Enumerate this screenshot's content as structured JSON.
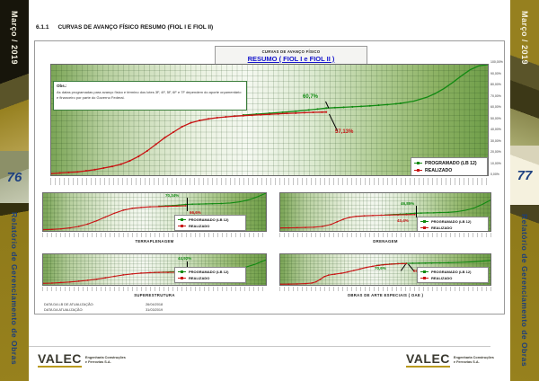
{
  "sidebar_left": {
    "month": "Março / 2019",
    "page_number": "76",
    "report_title": "Relatório de Gerenciamento de Obras"
  },
  "sidebar_right": {
    "month": "Março / 2019",
    "page_number": "77",
    "report_title": "Relatório de Gerenciamento de Obras"
  },
  "heading": {
    "number": "6.1.1",
    "title": "CURVAS DE AVANÇO FÍSICO RESUMO (FIOL I E FIOL II)"
  },
  "title_box": {
    "line1": "CURVAS DE AVANÇO FÍSICO",
    "line2": "RESUMO ( FIOL I e FIOL II )"
  },
  "note_box": {
    "label": "Obs.:",
    "text": "As datas programadas para avanço físico e término dos lotes 3F, 4F, 5F, 6F e 7F dependem do aporte orçamentário e financeiro por parte do Governo Federal."
  },
  "legend": {
    "programado": "PROGRAMADO (LB 12)",
    "realizado": "REALIZADO"
  },
  "main_chart": {
    "y_axis_labels": [
      "100,00%",
      "90,00%",
      "80,00%",
      "70,00%",
      "60,00%",
      "50,00%",
      "40,00%",
      "30,00%",
      "20,00%",
      "10,00%",
      "0,00%"
    ]
  },
  "footer_dates": {
    "rows": [
      {
        "label": "DATA DA LB DE ATUALIZAÇÃO:",
        "value": "26/04/2018"
      },
      {
        "label": "DATA DA ATUALIZAÇÃO:",
        "value": "31/03/2019"
      }
    ]
  },
  "logo": {
    "name": "VALEC",
    "tagline1": "Engenharia Construções",
    "tagline2": "e Ferrovias S.A."
  },
  "colors": {
    "programado": "#118a11",
    "realizado": "#c81414",
    "accent_blue": "#1414cc",
    "sidebar_gold": "#8f7a1a",
    "page_number_blue": "#1d4080"
  },
  "chart_data": [
    {
      "type": "line",
      "title": "RESUMO ( FIOL I e FIOL II )",
      "ylim": [
        0,
        100
      ],
      "legend_position": "bottom-right",
      "grid": true,
      "labels": {
        "programado": "60,7%",
        "realizado": "57,13%"
      },
      "series": [
        {
          "name": "PROGRAMADO (LB 12)",
          "color": "#118a11",
          "markers": true,
          "points": [
            [
              44,
              54.5
            ],
            [
              47,
              55.3
            ],
            [
              50,
              56.1
            ],
            [
              53,
              57
            ],
            [
              56,
              57.9
            ],
            [
              59,
              59
            ],
            [
              61,
              59.8
            ],
            [
              63,
              60.7
            ],
            [
              65,
              61.1
            ],
            [
              67,
              61.5
            ],
            [
              69,
              61.9
            ],
            [
              71,
              62.3
            ],
            [
              73,
              62.8
            ],
            [
              75,
              63.3
            ],
            [
              77,
              63.9
            ],
            [
              79,
              64.6
            ],
            [
              80,
              65
            ]
          ]
        },
        {
          "name": "PROGRAMADO (LB 12)",
          "segment": "projeção futura",
          "color": "#118a11",
          "markers": false,
          "points": [
            [
              80,
              65
            ],
            [
              83,
              67
            ],
            [
              86,
              70.5
            ],
            [
              88,
              74
            ],
            [
              90,
              78.5
            ],
            [
              92,
              84
            ],
            [
              94,
              90
            ],
            [
              96,
              95.5
            ],
            [
              98,
              99
            ],
            [
              100,
              100
            ]
          ]
        },
        {
          "name": "REALIZADO",
          "color": "#c81414",
          "markers": true,
          "points": [
            [
              0,
              1.5
            ],
            [
              2,
              2
            ],
            [
              4,
              2.5
            ],
            [
              6,
              3
            ],
            [
              8,
              4
            ],
            [
              10,
              5
            ],
            [
              12,
              6.5
            ],
            [
              14,
              8
            ],
            [
              16,
              10
            ],
            [
              18,
              13
            ],
            [
              20,
              17
            ],
            [
              22,
              22
            ],
            [
              24,
              28
            ],
            [
              26,
              34
            ],
            [
              28,
              39
            ],
            [
              30,
              44
            ],
            [
              32,
              47.5
            ],
            [
              34,
              49.5
            ],
            [
              36,
              51
            ],
            [
              38,
              52
            ],
            [
              40,
              52.8
            ],
            [
              42,
              53.4
            ],
            [
              44,
              53.9
            ],
            [
              46,
              54.3
            ],
            [
              48,
              54.7
            ],
            [
              50,
              55.1
            ],
            [
              52,
              55.5
            ],
            [
              54,
              55.9
            ],
            [
              56,
              56.2
            ],
            [
              58,
              56.6
            ],
            [
              60,
              56.9
            ],
            [
              62,
              57.05
            ],
            [
              63,
              57.13
            ]
          ]
        }
      ]
    },
    {
      "type": "line",
      "title": "TERRAPLENAGEM",
      "ylim": [
        0,
        100
      ],
      "grid": true,
      "labels": {
        "programado": "70,34%",
        "realizado": "66,6%"
      },
      "series": [
        {
          "name": "PROGRAMADO (LB 12)",
          "color": "#118a11",
          "markers": true,
          "points": [
            [
              52,
              65.5
            ],
            [
              55,
              66.3
            ],
            [
              58,
              67.2
            ],
            [
              61,
              68.5
            ],
            [
              64,
              70.34
            ],
            [
              67,
              70.9
            ],
            [
              70,
              71.3
            ],
            [
              73,
              71.7
            ],
            [
              76,
              72.1
            ],
            [
              80,
              72.6
            ]
          ]
        },
        {
          "name": "PROGRAMADO (LB 12)",
          "segment": "projeção futura",
          "color": "#118a11",
          "markers": false,
          "points": [
            [
              80,
              72.6
            ],
            [
              84,
              74
            ],
            [
              88,
              77
            ],
            [
              92,
              82
            ],
            [
              96,
              90
            ],
            [
              100,
              100
            ]
          ]
        },
        {
          "name": "REALIZADO",
          "color": "#c81414",
          "markers": true,
          "points": [
            [
              0,
              3
            ],
            [
              4,
              4
            ],
            [
              8,
              5.5
            ],
            [
              12,
              8
            ],
            [
              16,
              12
            ],
            [
              20,
              18
            ],
            [
              24,
              27
            ],
            [
              28,
              37
            ],
            [
              32,
              47
            ],
            [
              36,
              55
            ],
            [
              40,
              60
            ],
            [
              44,
              62.5
            ],
            [
              48,
              63.8
            ],
            [
              52,
              64.6
            ],
            [
              56,
              65.3
            ],
            [
              60,
              65.9
            ],
            [
              64,
              66.6
            ]
          ]
        }
      ]
    },
    {
      "type": "line",
      "title": "DRENAGEM",
      "ylim": [
        0,
        100
      ],
      "grid": true,
      "labels": {
        "programado": "46,85%",
        "realizado": "43,4%"
      },
      "series": [
        {
          "name": "PROGRAMADO (LB 12)",
          "color": "#118a11",
          "markers": true,
          "points": [
            [
              50,
              42.5
            ],
            [
              54,
              43.5
            ],
            [
              57,
              44.4
            ],
            [
              60,
              45.3
            ],
            [
              62,
              46
            ],
            [
              64,
              46.85
            ],
            [
              67,
              47.3
            ],
            [
              70,
              47.8
            ],
            [
              73,
              48.2
            ],
            [
              76,
              48.7
            ],
            [
              80,
              49.2
            ]
          ]
        },
        {
          "name": "PROGRAMADO (LB 12)",
          "segment": "projeção futura",
          "color": "#118a11",
          "markers": false,
          "points": [
            [
              80,
              49.2
            ],
            [
              84,
              51
            ],
            [
              88,
              54.5
            ],
            [
              92,
              60.5
            ],
            [
              96,
              70
            ],
            [
              100,
              82
            ]
          ]
        },
        {
          "name": "REALIZADO",
          "color": "#c81414",
          "markers": true,
          "points": [
            [
              0,
              8
            ],
            [
              4,
              8.3
            ],
            [
              8,
              8.7
            ],
            [
              12,
              9.2
            ],
            [
              16,
              10
            ],
            [
              20,
              12
            ],
            [
              24,
              17
            ],
            [
              27,
              24
            ],
            [
              30,
              31
            ],
            [
              33,
              36
            ],
            [
              36,
              38.5
            ],
            [
              40,
              40
            ],
            [
              44,
              41
            ],
            [
              48,
              41.7
            ],
            [
              52,
              42.2
            ],
            [
              56,
              42.7
            ],
            [
              60,
              43.1
            ],
            [
              64,
              43.4
            ]
          ]
        }
      ]
    },
    {
      "type": "line",
      "title": "SUPERESTRUTURA",
      "ylim": [
        0,
        100
      ],
      "grid": true,
      "labels": {
        "programado": "44,92%",
        "realizado": "41,2%"
      },
      "series": [
        {
          "name": "PROGRAMADO (LB 12)",
          "color": "#118a11",
          "markers": true,
          "points": [
            [
              50,
              40.5
            ],
            [
              54,
              41.5
            ],
            [
              57,
              42.4
            ],
            [
              60,
              43.3
            ],
            [
              62,
              44
            ],
            [
              64,
              44.92
            ],
            [
              67,
              45.4
            ],
            [
              70,
              45.9
            ],
            [
              73,
              46.3
            ],
            [
              76,
              46.8
            ],
            [
              80,
              47.3
            ]
          ]
        },
        {
          "name": "PROGRAMADO (LB 12)",
          "segment": "projeção futura",
          "color": "#118a11",
          "markers": false,
          "points": [
            [
              80,
              47.3
            ],
            [
              85,
              50
            ],
            [
              90,
              56
            ],
            [
              95,
              67
            ],
            [
              100,
              82
            ]
          ]
        },
        {
          "name": "REALIZADO",
          "color": "#c81414",
          "markers": true,
          "points": [
            [
              0,
              5
            ],
            [
              4,
              6
            ],
            [
              8,
              7.5
            ],
            [
              12,
              9.5
            ],
            [
              16,
              12
            ],
            [
              20,
              15
            ],
            [
              24,
              18.5
            ],
            [
              28,
              23
            ],
            [
              32,
              28
            ],
            [
              36,
              32.5
            ],
            [
              40,
              36
            ],
            [
              44,
              38.5
            ],
            [
              48,
              40
            ],
            [
              52,
              40.8
            ],
            [
              56,
              41
            ],
            [
              60,
              41.1
            ],
            [
              64,
              41.2
            ]
          ]
        }
      ]
    },
    {
      "type": "line",
      "title": "OBRAS DE ARTE ESPECIAIS ( OAE )",
      "ylim": [
        0,
        100
      ],
      "grid": true,
      "labels": {
        "programado": "70,6%",
        "realizado": "69,6%"
      },
      "series": [
        {
          "name": "PROGRAMADO (LB 12)",
          "color": "#118a11",
          "markers": true,
          "points": [
            [
              46,
              63.5
            ],
            [
              49,
              66
            ],
            [
              52,
              67.8
            ],
            [
              54,
              68.6
            ],
            [
              56,
              69.3
            ],
            [
              58,
              70
            ],
            [
              60,
              70.6
            ],
            [
              63,
              70.9
            ],
            [
              66,
              71.2
            ],
            [
              69,
              71.5
            ],
            [
              72,
              71.8
            ],
            [
              76,
              72.1
            ],
            [
              80,
              72.4
            ]
          ]
        },
        {
          "name": "PROGRAMADO (LB 12)",
          "segment": "projeção futura",
          "color": "#118a11",
          "markers": false,
          "points": [
            [
              80,
              72.4
            ],
            [
              86,
              73.5
            ],
            [
              92,
              75.5
            ],
            [
              100,
              80
            ]
          ]
        },
        {
          "name": "REALIZADO",
          "color": "#c81414",
          "markers": true,
          "points": [
            [
              0,
              2
            ],
            [
              4,
              2.4
            ],
            [
              8,
              3
            ],
            [
              12,
              4
            ],
            [
              15,
              6
            ],
            [
              17,
              10
            ],
            [
              19,
              18
            ],
            [
              21,
              27
            ],
            [
              23,
              32
            ],
            [
              26,
              35
            ],
            [
              29,
              38
            ],
            [
              32,
              42
            ],
            [
              35,
              47
            ],
            [
              38,
              52
            ],
            [
              41,
              57
            ],
            [
              44,
              61
            ],
            [
              47,
              64
            ],
            [
              50,
              66.5
            ],
            [
              53,
              68
            ],
            [
              56,
              69
            ],
            [
              58,
              69.4
            ],
            [
              60,
              69.6
            ]
          ]
        }
      ]
    }
  ]
}
